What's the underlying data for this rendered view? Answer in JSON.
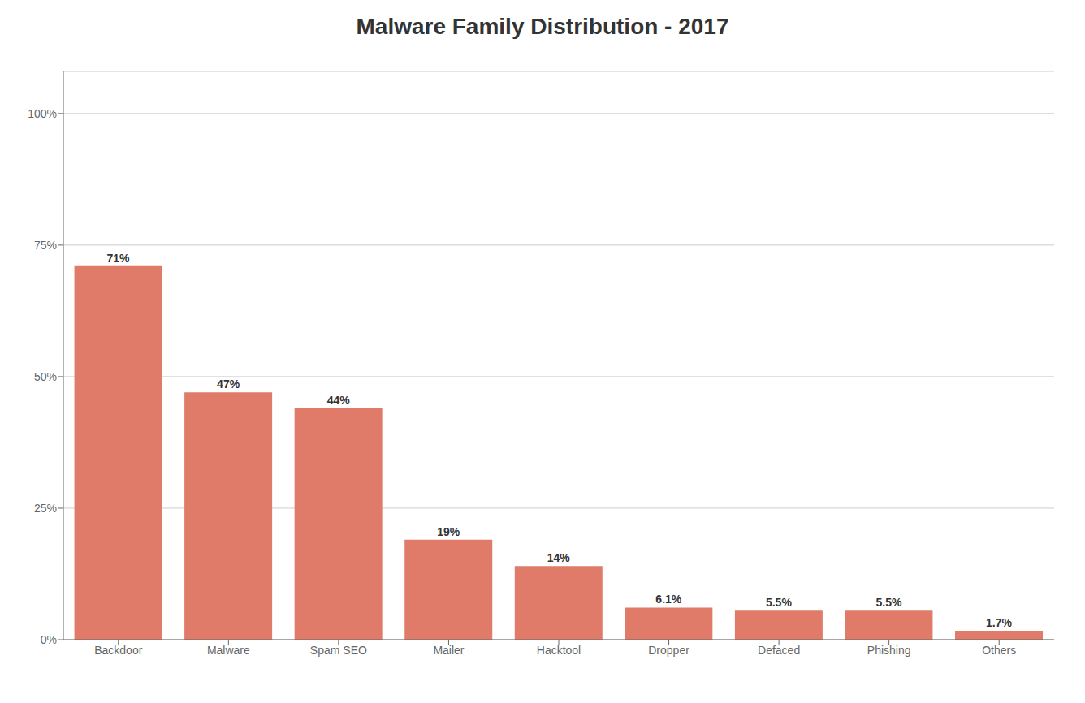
{
  "chart_data": {
    "type": "bar",
    "title": "Malware Family Distribution - 2017",
    "categories": [
      "Backdoor",
      "Malware",
      "Spam SEO",
      "Mailer",
      "Hacktool",
      "Dropper",
      "Defaced",
      "Phishing",
      "Others"
    ],
    "values": [
      71,
      47,
      44,
      19,
      14,
      6.1,
      5.5,
      5.5,
      1.7
    ],
    "value_labels": [
      "71%",
      "47%",
      "44%",
      "19%",
      "14%",
      "6.1%",
      "5.5%",
      "5.5%",
      "1.7%"
    ],
    "data_labels": true,
    "color": "#E07B6A",
    "ylim": [
      0,
      108
    ],
    "yticks": [
      {
        "value": 0,
        "label": "0%"
      },
      {
        "value": 25,
        "label": "25%"
      },
      {
        "value": 50,
        "label": "50%"
      },
      {
        "value": 75,
        "label": "75%"
      },
      {
        "value": 100,
        "label": "100%"
      }
    ],
    "grid": true
  }
}
